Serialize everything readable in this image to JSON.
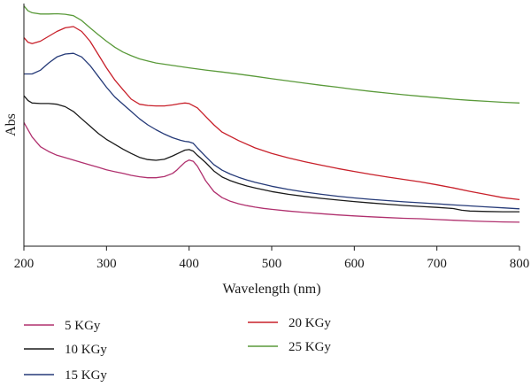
{
  "chart_data": {
    "type": "line",
    "xlabel": "Wavelength (nm)",
    "ylabel": "Abs",
    "xlim": [
      200,
      800
    ],
    "ylim": [
      0,
      1
    ],
    "xticks": [
      200,
      300,
      400,
      500,
      600,
      700,
      800
    ],
    "grid": false,
    "legend": "bottom",
    "series": [
      {
        "name": "5 KGy",
        "color": "#b0306e",
        "x": [
          200,
          210,
          220,
          230,
          240,
          250,
          260,
          270,
          280,
          290,
          300,
          310,
          320,
          330,
          340,
          350,
          360,
          370,
          380,
          385,
          390,
          395,
          400,
          405,
          410,
          415,
          420,
          430,
          440,
          450,
          460,
          470,
          480,
          490,
          500,
          520,
          540,
          560,
          580,
          600,
          620,
          640,
          660,
          680,
          700,
          720,
          740,
          760,
          780,
          800
        ],
        "y": [
          0.51,
          0.45,
          0.41,
          0.39,
          0.375,
          0.365,
          0.355,
          0.345,
          0.335,
          0.325,
          0.315,
          0.307,
          0.3,
          0.292,
          0.286,
          0.282,
          0.282,
          0.287,
          0.3,
          0.313,
          0.33,
          0.346,
          0.355,
          0.35,
          0.33,
          0.3,
          0.27,
          0.225,
          0.2,
          0.185,
          0.175,
          0.167,
          0.161,
          0.156,
          0.152,
          0.145,
          0.139,
          0.134,
          0.129,
          0.125,
          0.121,
          0.118,
          0.115,
          0.113,
          0.11,
          0.107,
          0.104,
          0.102,
          0.1,
          0.099
        ]
      },
      {
        "name": "10 KGy",
        "color": "#1a1a1a",
        "x": [
          200,
          205,
          210,
          220,
          230,
          240,
          250,
          260,
          270,
          280,
          290,
          300,
          310,
          320,
          330,
          340,
          350,
          360,
          370,
          380,
          390,
          395,
          400,
          405,
          410,
          420,
          430,
          440,
          450,
          460,
          470,
          480,
          500,
          520,
          540,
          560,
          580,
          600,
          620,
          640,
          660,
          680,
          700,
          720,
          730,
          740,
          760,
          780,
          800
        ],
        "y": [
          0.62,
          0.6,
          0.59,
          0.588,
          0.588,
          0.585,
          0.575,
          0.555,
          0.525,
          0.495,
          0.465,
          0.44,
          0.42,
          0.4,
          0.382,
          0.366,
          0.357,
          0.354,
          0.358,
          0.372,
          0.388,
          0.396,
          0.398,
          0.392,
          0.375,
          0.345,
          0.31,
          0.285,
          0.27,
          0.258,
          0.248,
          0.24,
          0.225,
          0.214,
          0.205,
          0.197,
          0.19,
          0.184,
          0.178,
          0.173,
          0.168,
          0.164,
          0.16,
          0.155,
          0.148,
          0.145,
          0.143,
          0.142,
          0.142
        ]
      },
      {
        "name": "15 KGy",
        "color": "#253a78",
        "x": [
          200,
          210,
          220,
          230,
          240,
          250,
          260,
          270,
          280,
          290,
          300,
          310,
          320,
          330,
          340,
          350,
          360,
          370,
          380,
          390,
          395,
          400,
          405,
          410,
          420,
          430,
          440,
          450,
          460,
          470,
          480,
          500,
          520,
          540,
          560,
          580,
          600,
          620,
          640,
          660,
          680,
          700,
          720,
          740,
          760,
          780,
          800
        ],
        "y": [
          0.71,
          0.71,
          0.725,
          0.755,
          0.78,
          0.792,
          0.795,
          0.78,
          0.745,
          0.7,
          0.655,
          0.615,
          0.585,
          0.555,
          0.525,
          0.5,
          0.48,
          0.462,
          0.447,
          0.436,
          0.432,
          0.43,
          0.424,
          0.405,
          0.37,
          0.336,
          0.313,
          0.297,
          0.284,
          0.273,
          0.263,
          0.247,
          0.234,
          0.223,
          0.214,
          0.206,
          0.199,
          0.193,
          0.188,
          0.183,
          0.179,
          0.175,
          0.17,
          0.166,
          0.162,
          0.158,
          0.154
        ]
      },
      {
        "name": "20 KGy",
        "color": "#c8202a",
        "x": [
          200,
          205,
          210,
          220,
          230,
          240,
          250,
          260,
          270,
          280,
          290,
          300,
          310,
          320,
          330,
          340,
          350,
          360,
          370,
          380,
          390,
          395,
          400,
          410,
          420,
          430,
          440,
          460,
          480,
          500,
          520,
          540,
          560,
          580,
          600,
          620,
          640,
          660,
          680,
          700,
          720,
          740,
          760,
          780,
          800
        ],
        "y": [
          0.86,
          0.84,
          0.835,
          0.845,
          0.865,
          0.885,
          0.9,
          0.905,
          0.885,
          0.845,
          0.79,
          0.735,
          0.685,
          0.645,
          0.606,
          0.585,
          0.58,
          0.578,
          0.578,
          0.582,
          0.588,
          0.59,
          0.588,
          0.57,
          0.535,
          0.5,
          0.47,
          0.435,
          0.405,
          0.382,
          0.364,
          0.348,
          0.334,
          0.32,
          0.308,
          0.296,
          0.285,
          0.275,
          0.265,
          0.253,
          0.24,
          0.226,
          0.213,
          0.2,
          0.192
        ]
      },
      {
        "name": "25 KGy",
        "color": "#5a9a3a",
        "x": [
          200,
          205,
          210,
          220,
          230,
          240,
          250,
          260,
          270,
          280,
          290,
          300,
          310,
          320,
          330,
          340,
          350,
          360,
          380,
          400,
          420,
          440,
          460,
          480,
          500,
          520,
          540,
          560,
          580,
          600,
          620,
          640,
          660,
          680,
          700,
          720,
          740,
          760,
          780,
          800
        ],
        "y": [
          0.99,
          0.97,
          0.962,
          0.957,
          0.957,
          0.958,
          0.956,
          0.95,
          0.93,
          0.9,
          0.872,
          0.845,
          0.82,
          0.8,
          0.785,
          0.772,
          0.763,
          0.755,
          0.745,
          0.735,
          0.726,
          0.718,
          0.709,
          0.7,
          0.69,
          0.681,
          0.672,
          0.663,
          0.655,
          0.646,
          0.638,
          0.631,
          0.624,
          0.618,
          0.612,
          0.606,
          0.601,
          0.597,
          0.593,
          0.59
        ]
      }
    ]
  }
}
